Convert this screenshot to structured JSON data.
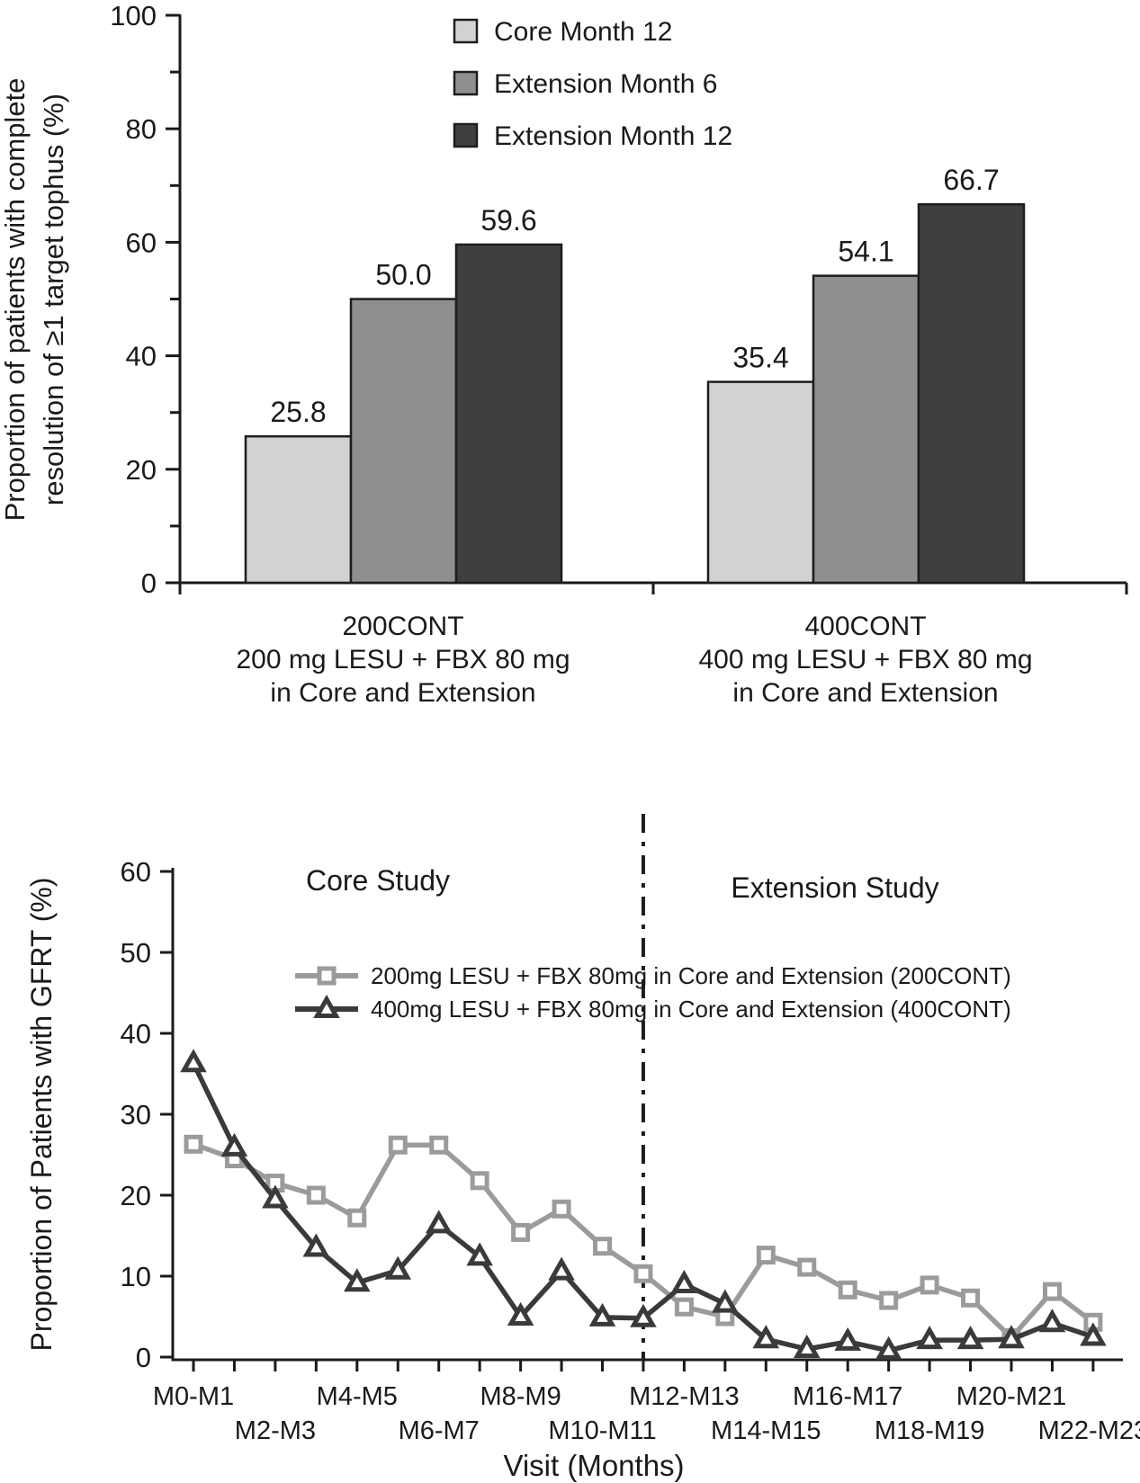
{
  "chart_data": [
    {
      "id": "tophus-bar-chart",
      "type": "bar",
      "ylabel_line1": "Proportion of patients with complete",
      "ylabel_line2": "resolution of ≥1 target tophus (%)",
      "ylim": [
        0,
        100
      ],
      "yticks": [
        0,
        20,
        40,
        60,
        80,
        100
      ],
      "minor_yticks": [
        10,
        30,
        50,
        70,
        90
      ],
      "grid": false,
      "legend_position": "top-center",
      "legend": [
        {
          "label": "Core Month 12",
          "color": "#d2d2d2"
        },
        {
          "label": "Extension Month 6",
          "color": "#8f8f8f"
        },
        {
          "label": "Extension Month 12",
          "color": "#3f3f3f"
        }
      ],
      "groups": [
        {
          "name_line1": "200CONT",
          "name_line2": "200 mg LESU + FBX 80 mg",
          "name_line3": "in Core and Extension",
          "values": [
            25.8,
            50.0,
            59.6
          ],
          "value_labels": [
            "25.8",
            "50.0",
            "59.6"
          ]
        },
        {
          "name_line1": "400CONT",
          "name_line2": "400 mg LESU + FBX 80 mg",
          "name_line3": "in Core and Extension",
          "values": [
            35.4,
            54.1,
            66.7
          ],
          "value_labels": [
            "35.4",
            "54.1",
            "66.7"
          ]
        }
      ]
    },
    {
      "id": "gfrt-line-chart",
      "type": "line",
      "ylabel": "Proportion of Patients with GFRT (%)",
      "xlabel": "Visit (Months)",
      "ylim": [
        0,
        60
      ],
      "yticks": [
        0,
        10,
        20,
        30,
        40,
        50,
        60
      ],
      "x_labels": [
        "M0-M1",
        "M2-M3",
        "M4-M5",
        "M6-M7",
        "M8-M9",
        "M10-M11",
        "M12-M13",
        "M14-M15",
        "M16-M17",
        "M18-M19",
        "M20-M21",
        "M22-M23"
      ],
      "x_labels_staggered": true,
      "n_points": 23,
      "annotations": {
        "left_region": "Core Study",
        "right_region": "Extension Study",
        "divider_at_point_index": 11,
        "divider_style": "dash-dot-vertical"
      },
      "legend_position": "inside-top-left",
      "series": [
        {
          "name": "200mg LESU + FBX 80mg in Core and Extension (200CONT)",
          "marker": "square",
          "color": "#9b9b9b",
          "values": [
            26.3,
            24.5,
            21.5,
            20.0,
            17.2,
            26.2,
            26.2,
            21.8,
            15.4,
            18.3,
            13.7,
            10.3,
            6.2,
            5.0,
            12.6,
            11.1,
            8.3,
            7.0,
            8.9,
            7.3,
            2.4,
            8.1,
            4.3
          ]
        },
        {
          "name": "400mg LESU + FBX 80mg in Core and Extension (400CONT)",
          "marker": "triangle",
          "color": "#3a3a3a",
          "values": [
            36.3,
            25.9,
            19.5,
            13.5,
            9.2,
            10.7,
            16.4,
            12.4,
            5.0,
            10.6,
            4.9,
            4.8,
            9.0,
            6.6,
            2.2,
            1.0,
            1.9,
            0.8,
            2.1,
            2.1,
            2.2,
            4.2,
            2.5
          ]
        }
      ]
    }
  ]
}
